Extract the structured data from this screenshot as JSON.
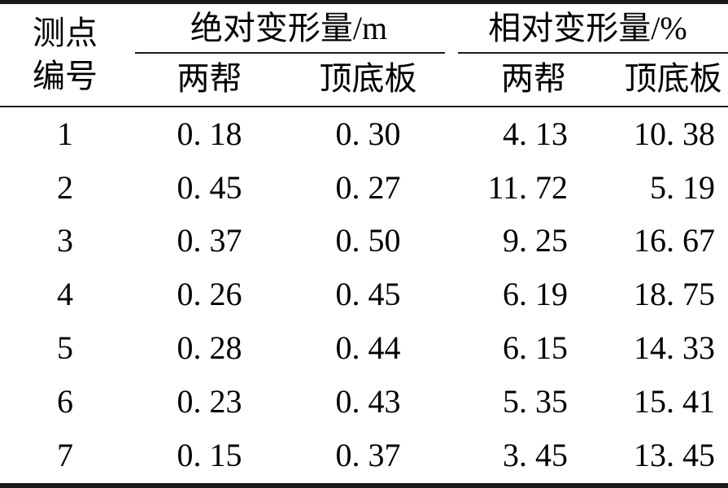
{
  "meta": {
    "background_color": "#ffffff",
    "text_color": "#000000",
    "rule_color": "#1a1a1a"
  },
  "table": {
    "header": {
      "point_label_line1": "测点",
      "point_label_line2": "编号",
      "group_absolute": "绝对变形量/m",
      "group_relative": "相对变形量/%",
      "sub_abs_sides": "两帮",
      "sub_abs_roof_floor": "顶底板",
      "sub_rel_sides": "两帮",
      "sub_rel_roof_floor": "顶底板"
    },
    "rows": [
      {
        "point": "1",
        "abs_sides": "0. 18",
        "abs_roof_floor": "0. 30",
        "rel_sides": "4. 13",
        "rel_roof_floor": "10. 38"
      },
      {
        "point": "2",
        "abs_sides": "0. 45",
        "abs_roof_floor": "0. 27",
        "rel_sides": "11. 72",
        "rel_roof_floor": "5. 19"
      },
      {
        "point": "3",
        "abs_sides": "0. 37",
        "abs_roof_floor": "0. 50",
        "rel_sides": "9. 25",
        "rel_roof_floor": "16. 67"
      },
      {
        "point": "4",
        "abs_sides": "0. 26",
        "abs_roof_floor": "0. 45",
        "rel_sides": "6. 19",
        "rel_roof_floor": "18. 75"
      },
      {
        "point": "5",
        "abs_sides": "0. 28",
        "abs_roof_floor": "0. 44",
        "rel_sides": "6. 15",
        "rel_roof_floor": "14. 33"
      },
      {
        "point": "6",
        "abs_sides": "0. 23",
        "abs_roof_floor": "0. 43",
        "rel_sides": "5. 35",
        "rel_roof_floor": "15. 41"
      },
      {
        "point": "7",
        "abs_sides": "0. 15",
        "abs_roof_floor": "0. 37",
        "rel_sides": "3. 45",
        "rel_roof_floor": "13. 45"
      }
    ]
  },
  "chart_data": {
    "type": "table",
    "title": "",
    "columns": [
      "测点编号",
      "绝对变形量/m 两帮",
      "绝对变形量/m 顶底板",
      "相对变形量/% 两帮",
      "相对变形量/% 顶底板"
    ],
    "rows": [
      [
        1,
        0.18,
        0.3,
        4.13,
        10.38
      ],
      [
        2,
        0.45,
        0.27,
        11.72,
        5.19
      ],
      [
        3,
        0.37,
        0.5,
        9.25,
        16.67
      ],
      [
        4,
        0.26,
        0.45,
        6.19,
        18.75
      ],
      [
        5,
        0.28,
        0.44,
        6.15,
        14.33
      ],
      [
        6,
        0.23,
        0.43,
        5.35,
        15.41
      ],
      [
        7,
        0.15,
        0.37,
        3.45,
        13.45
      ]
    ]
  }
}
